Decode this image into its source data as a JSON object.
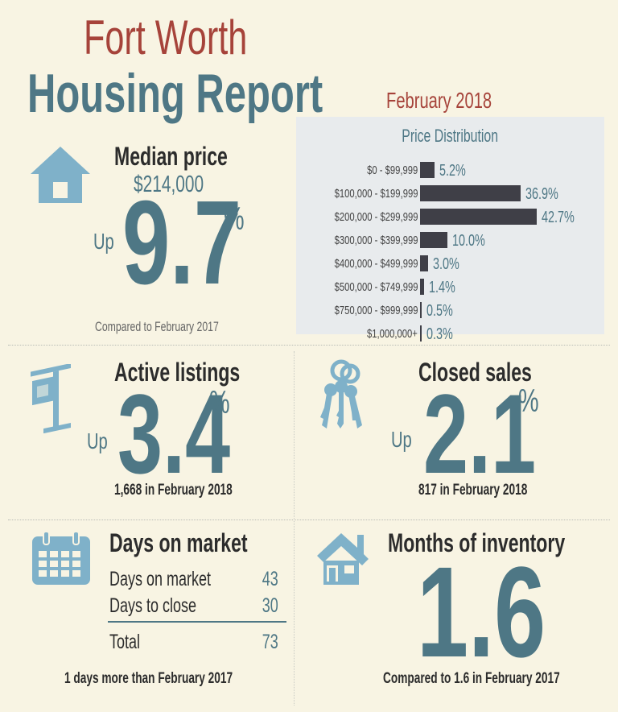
{
  "title": {
    "line1": "Fort Worth",
    "line2": "Housing Report",
    "date": "February 2018"
  },
  "colors": {
    "teal": "#4e7785",
    "red": "#a6433a",
    "icon_blue": "#7fb1c9",
    "bar": "#3f3f47",
    "background": "#f8f4e3",
    "panel": "#e8ebed"
  },
  "median_price": {
    "label": "Median price",
    "value": "$214,000",
    "direction": "Up",
    "change": "9.7",
    "percent_sign": "%",
    "comparison": "Compared to February 2017",
    "icon": "house-icon"
  },
  "price_distribution": {
    "title": "Price Distribution",
    "chart_data": {
      "type": "bar",
      "title": "Price Distribution",
      "categories": [
        "$0 - $99,999",
        "$100,000 - $199,999",
        "$200,000 - $299,999",
        "$300,000 - $399,999",
        "$400,000 - $499,999",
        "$500,000 - $749,999",
        "$750,000 - $999,999",
        "$1,000,000+"
      ],
      "values": [
        5.2,
        36.9,
        42.7,
        10.0,
        3.0,
        1.4,
        0.5,
        0.3
      ],
      "value_labels": [
        "5.2%",
        "36.9%",
        "42.7%",
        "10.0%",
        "3.0%",
        "1.4%",
        "0.5%",
        "0.3%"
      ],
      "orientation": "horizontal",
      "grid": false
    }
  },
  "active_listings": {
    "label": "Active listings",
    "direction": "Up",
    "change": "3.4",
    "percent_sign": "%",
    "note": "1,668 in February 2018",
    "icon": "for-sale-sign-icon"
  },
  "closed_sales": {
    "label": "Closed sales",
    "direction": "Up",
    "change": "2.1",
    "percent_sign": "%",
    "note": "817 in February 2018",
    "icon": "keys-icon"
  },
  "days_on_market": {
    "label": "Days on market",
    "rows": [
      {
        "label": "Days on market",
        "value": "43"
      },
      {
        "label": "Days to close",
        "value": "30"
      }
    ],
    "total": {
      "label": "Total",
      "value": "73"
    },
    "note": "1 days more than February 2017",
    "icon": "calendar-icon"
  },
  "months_of_inventory": {
    "label": "Months of inventory",
    "value": "1.6",
    "note": "Compared to 1.6 in February 2017",
    "icon": "house-with-door-icon"
  }
}
